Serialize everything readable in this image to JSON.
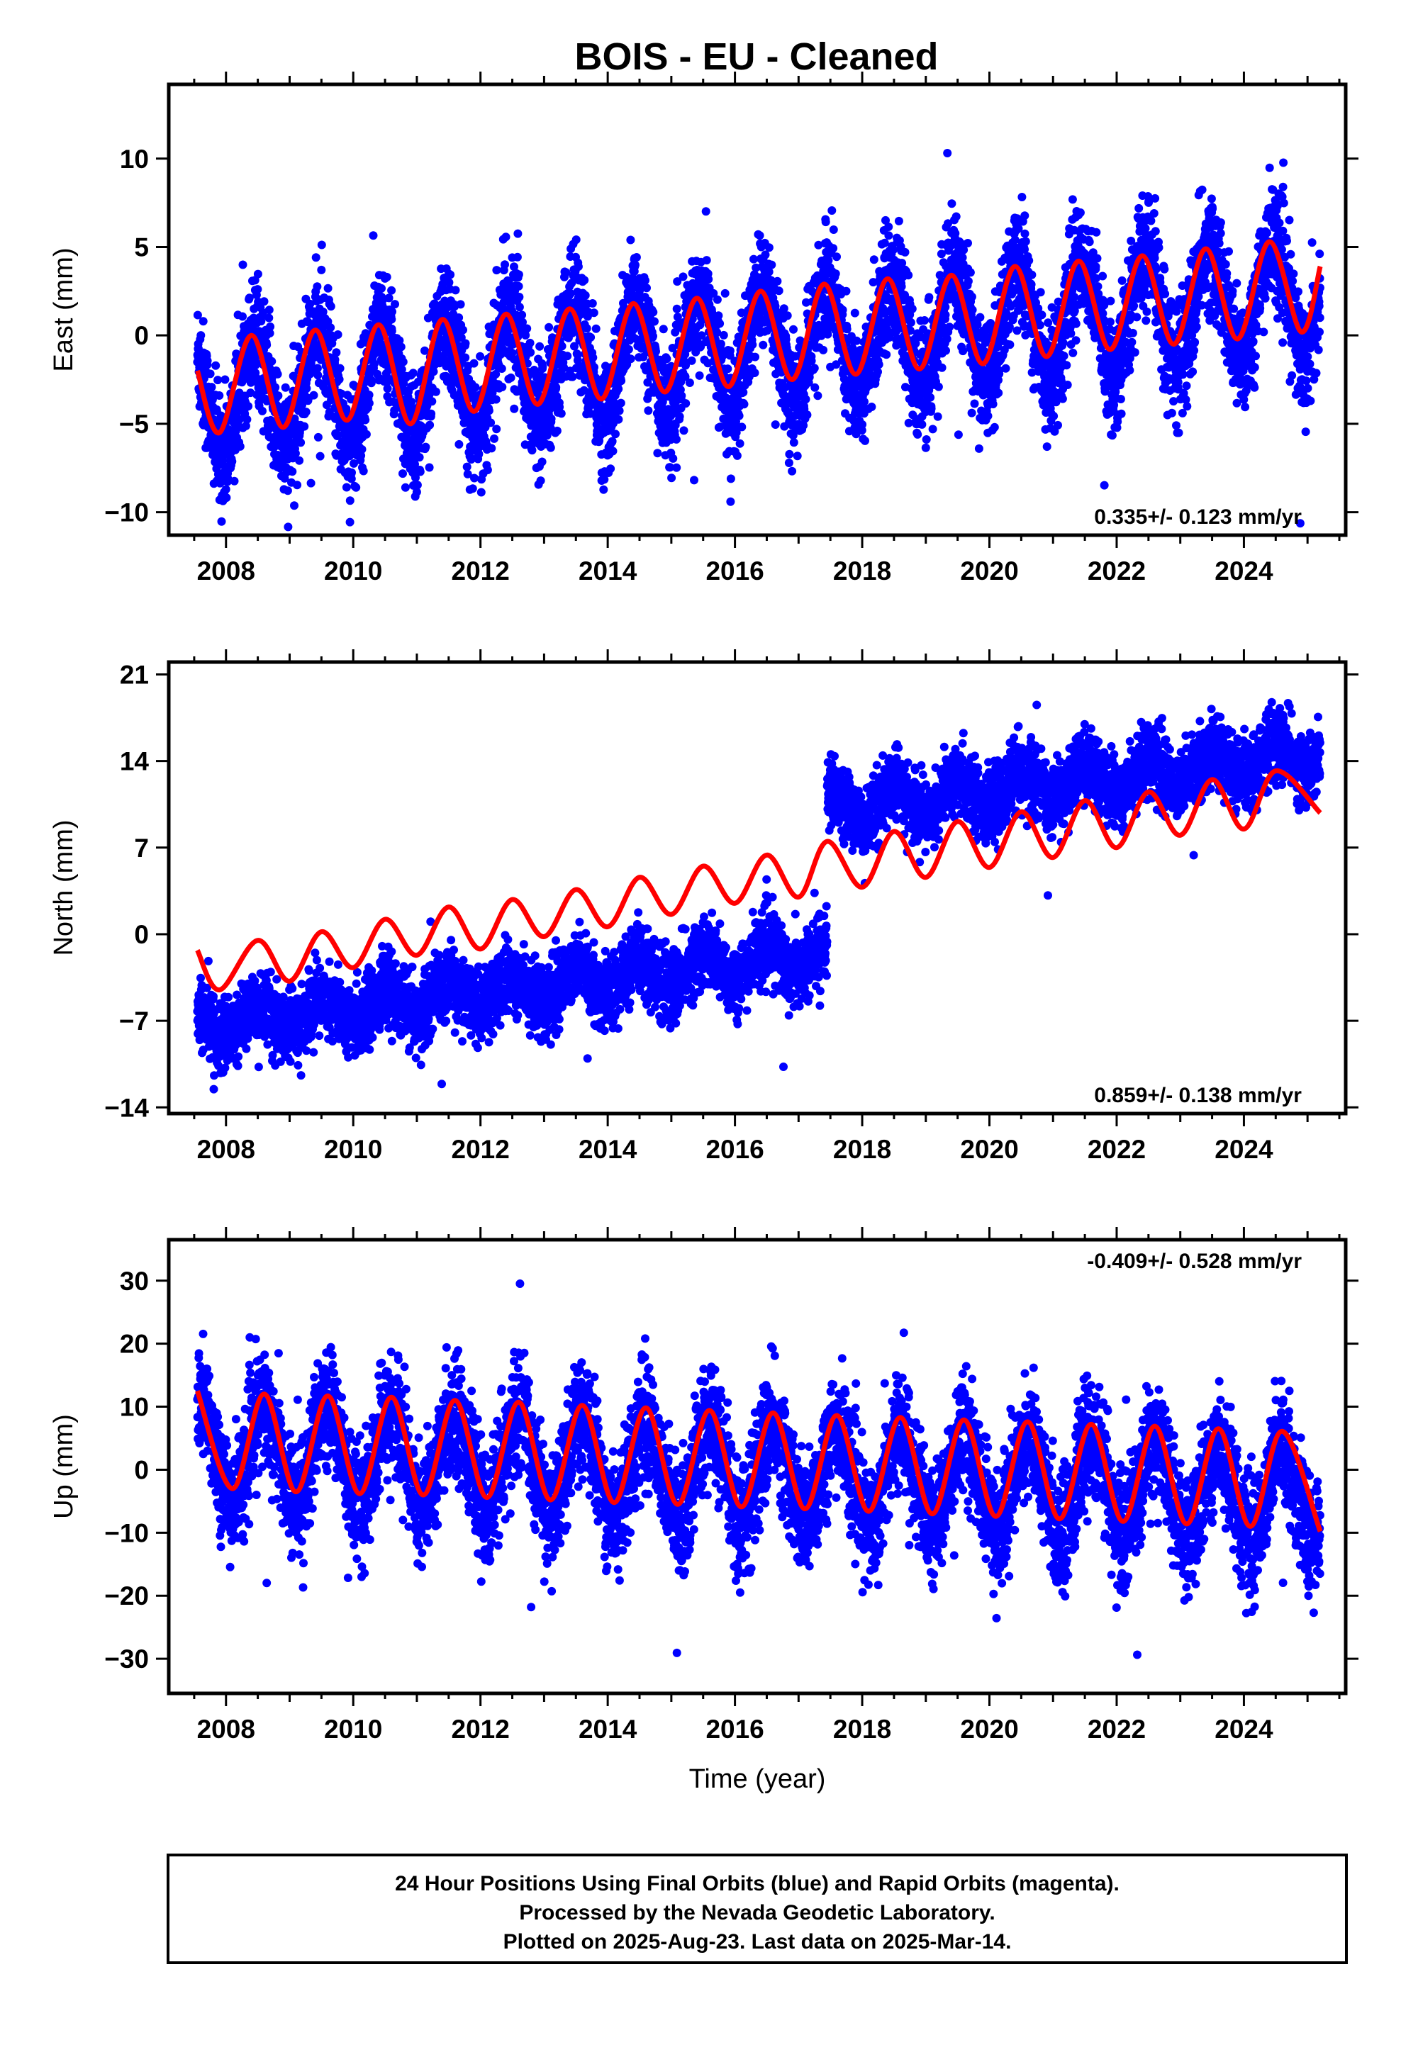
{
  "chart_data": [
    {
      "type": "scatter",
      "panel": "east",
      "title": "BOIS  - EU - Cleaned",
      "xlabel": "",
      "ylabel": "East (mm)",
      "xlim": [
        2007.1,
        2025.6
      ],
      "ylim": [
        -11.3,
        14.2
      ],
      "xticks": [
        2008,
        2010,
        2012,
        2014,
        2016,
        2018,
        2020,
        2022,
        2024
      ],
      "yticks": [
        10,
        5,
        0,
        -5,
        -10
      ],
      "ytick_labels": [
        "10",
        "5",
        "0",
        "−5",
        "−10"
      ],
      "rate": "0.335+/- 0.123 mm/yr",
      "series": [
        {
          "kind": "observed",
          "color": "#0000ff",
          "data_start": 2007.55,
          "data_end": 2025.2,
          "trend_offset": -3.6,
          "trend_slope": 0.335,
          "seasonal_amplitude": 3.2,
          "peak_phase": 0.45,
          "noise": 1.6
        },
        {
          "kind": "model",
          "color": "#ff0000",
          "points": [
            [
              2007.55,
              -2.0
            ],
            [
              2007.9,
              -5.5
            ],
            [
              2008.4,
              0.0
            ],
            [
              2008.9,
              -5.2
            ],
            [
              2009.4,
              0.3
            ],
            [
              2009.9,
              -4.8
            ],
            [
              2010.4,
              0.6
            ],
            [
              2010.9,
              -5.0
            ],
            [
              2011.4,
              0.9
            ],
            [
              2011.9,
              -4.3
            ],
            [
              2012.4,
              1.2
            ],
            [
              2012.9,
              -3.9
            ],
            [
              2013.4,
              1.5
            ],
            [
              2013.9,
              -3.6
            ],
            [
              2014.4,
              1.8
            ],
            [
              2014.9,
              -3.2
            ],
            [
              2015.4,
              2.1
            ],
            [
              2015.9,
              -2.9
            ],
            [
              2016.4,
              2.5
            ],
            [
              2016.9,
              -2.5
            ],
            [
              2017.4,
              2.9
            ],
            [
              2017.9,
              -2.2
            ],
            [
              2018.4,
              3.2
            ],
            [
              2018.9,
              -1.9
            ],
            [
              2019.4,
              3.4
            ],
            [
              2019.9,
              -1.6
            ],
            [
              2020.4,
              3.9
            ],
            [
              2020.9,
              -1.2
            ],
            [
              2021.4,
              4.2
            ],
            [
              2021.9,
              -0.8
            ],
            [
              2022.4,
              4.5
            ],
            [
              2022.9,
              -0.5
            ],
            [
              2023.4,
              4.9
            ],
            [
              2023.9,
              -0.2
            ],
            [
              2024.4,
              5.3
            ],
            [
              2024.9,
              0.2
            ],
            [
              2025.2,
              3.9
            ]
          ]
        }
      ]
    },
    {
      "type": "scatter",
      "panel": "north",
      "xlabel": "",
      "ylabel": "North (mm)",
      "xlim": [
        2007.1,
        2025.6
      ],
      "ylim": [
        -14.5,
        22.0
      ],
      "xticks": [
        2008,
        2010,
        2012,
        2014,
        2016,
        2018,
        2020,
        2022,
        2024
      ],
      "yticks": [
        21,
        14,
        7,
        0,
        -7,
        -14
      ],
      "ytick_labels": [
        "21",
        "14",
        "7",
        "0",
        "−7",
        "−14"
      ],
      "rate": "0.859+/- 0.138 mm/yr",
      "series": [
        {
          "kind": "observed",
          "color": "#0000ff",
          "data_start": 2007.55,
          "data_end": 2025.2,
          "trend_offset": -7.5,
          "trend_slope": 0.6,
          "offset_epoch": 2017.45,
          "offset_size": 11.5,
          "seasonal_amplitude": 1.2,
          "peak_phase": 0.5,
          "noise": 1.4
        },
        {
          "kind": "model",
          "color": "#ff0000",
          "points": [
            [
              2007.55,
              -1.3
            ],
            [
              2007.9,
              -4.5
            ],
            [
              2008.5,
              -0.5
            ],
            [
              2009.0,
              -3.8
            ],
            [
              2009.5,
              0.2
            ],
            [
              2010.0,
              -2.7
            ],
            [
              2010.5,
              1.2
            ],
            [
              2011.0,
              -1.7
            ],
            [
              2011.5,
              2.2
            ],
            [
              2012.0,
              -1.2
            ],
            [
              2012.5,
              2.8
            ],
            [
              2013.0,
              -0.2
            ],
            [
              2013.5,
              3.6
            ],
            [
              2014.0,
              0.6
            ],
            [
              2014.5,
              4.6
            ],
            [
              2015.0,
              1.6
            ],
            [
              2015.5,
              5.5
            ],
            [
              2016.0,
              2.5
            ],
            [
              2016.5,
              6.4
            ],
            [
              2017.0,
              3.0
            ],
            [
              2017.45,
              7.5
            ],
            [
              2018.0,
              3.8
            ],
            [
              2018.5,
              8.3
            ],
            [
              2019.0,
              4.6
            ],
            [
              2019.5,
              9.1
            ],
            [
              2020.0,
              5.4
            ],
            [
              2020.5,
              9.9
            ],
            [
              2021.0,
              6.2
            ],
            [
              2021.5,
              10.8
            ],
            [
              2022.0,
              7.0
            ],
            [
              2022.5,
              11.5
            ],
            [
              2023.0,
              8.0
            ],
            [
              2023.5,
              12.5
            ],
            [
              2024.0,
              8.5
            ],
            [
              2024.5,
              13.2
            ],
            [
              2025.2,
              9.8
            ]
          ]
        }
      ]
    },
    {
      "type": "scatter",
      "panel": "up",
      "xlabel": "Time (year)",
      "ylabel": "Up (mm)",
      "xlim": [
        2007.1,
        2025.6
      ],
      "ylim": [
        -35.5,
        36.5
      ],
      "xticks": [
        2008,
        2010,
        2012,
        2014,
        2016,
        2018,
        2020,
        2022,
        2024
      ],
      "yticks": [
        30,
        20,
        10,
        0,
        -10,
        -20,
        -30
      ],
      "ytick_labels": [
        "30",
        "20",
        "10",
        "0",
        "−10",
        "−20",
        "−30"
      ],
      "rate": "-0.409+/- 0.528 mm/yr",
      "series": [
        {
          "kind": "observed",
          "color": "#0000ff",
          "data_start": 2007.55,
          "data_end": 2025.2,
          "trend_offset": 3.0,
          "trend_slope": -0.4,
          "seasonal_amplitude": 7.5,
          "peak_phase": 0.6,
          "noise": 4.5
        },
        {
          "kind": "model",
          "color": "#ff0000",
          "points": [
            [
              2007.55,
              12.5
            ],
            [
              2008.1,
              -3.0
            ],
            [
              2008.6,
              12.0
            ],
            [
              2009.1,
              -3.5
            ],
            [
              2009.6,
              11.7
            ],
            [
              2010.1,
              -3.8
            ],
            [
              2010.6,
              11.5
            ],
            [
              2011.1,
              -4.0
            ],
            [
              2011.6,
              11.0
            ],
            [
              2012.1,
              -4.4
            ],
            [
              2012.6,
              10.7
            ],
            [
              2013.1,
              -4.8
            ],
            [
              2013.6,
              10.2
            ],
            [
              2014.1,
              -5.2
            ],
            [
              2014.6,
              9.8
            ],
            [
              2015.1,
              -5.5
            ],
            [
              2015.6,
              9.4
            ],
            [
              2016.1,
              -5.9
            ],
            [
              2016.6,
              9.0
            ],
            [
              2017.1,
              -6.2
            ],
            [
              2017.6,
              8.6
            ],
            [
              2018.1,
              -6.6
            ],
            [
              2018.6,
              8.3
            ],
            [
              2019.1,
              -7.0
            ],
            [
              2019.6,
              7.9
            ],
            [
              2020.1,
              -7.4
            ],
            [
              2020.6,
              7.6
            ],
            [
              2021.1,
              -7.8
            ],
            [
              2021.6,
              7.2
            ],
            [
              2022.1,
              -8.2
            ],
            [
              2022.6,
              6.9
            ],
            [
              2023.1,
              -8.6
            ],
            [
              2023.6,
              6.5
            ],
            [
              2024.1,
              -9.0
            ],
            [
              2024.6,
              6.1
            ],
            [
              2025.2,
              -9.8
            ]
          ]
        }
      ]
    }
  ],
  "footer": {
    "line1": "24 Hour Positions Using Final Orbits (blue) and Rapid Orbits (magenta).",
    "line2": "Processed by the Nevada Geodetic Laboratory.",
    "line3": "Plotted on 2025-Aug-23. Last data on 2025-Mar-14."
  }
}
